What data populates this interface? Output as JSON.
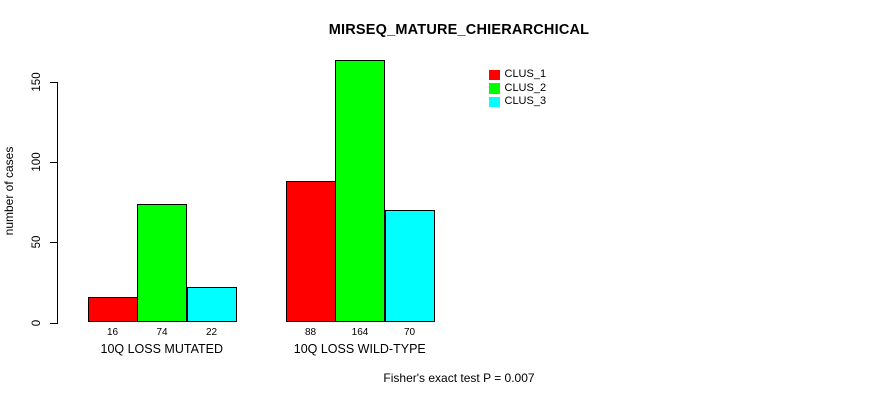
{
  "chart_data": {
    "type": "bar",
    "title": "MIRSEQ_MATURE_CHIERARCHICAL",
    "ylabel": "number of cases",
    "xlabel": "",
    "categories": [
      "10Q LOSS MUTATED",
      "10Q LOSS WILD-TYPE"
    ],
    "series": [
      {
        "name": "CLUS_1",
        "color": "#FF0000",
        "values": [
          16,
          88
        ]
      },
      {
        "name": "CLUS_2",
        "color": "#00FF00",
        "values": [
          74,
          164
        ]
      },
      {
        "name": "CLUS_3",
        "color": "#00FFFF",
        "values": [
          22,
          70
        ]
      }
    ],
    "bar_value_labels": [
      [
        "16",
        "74",
        "22"
      ],
      [
        "88",
        "164",
        "70"
      ]
    ],
    "ylim": [
      0,
      150
    ],
    "yticks": [
      0,
      50,
      100,
      150
    ],
    "grid": false,
    "legend_position": "top-right",
    "legend_entries": [
      "CLUS_1",
      "CLUS_2",
      "CLUS_3"
    ],
    "footnote": "Fisher's exact test P = 0.007"
  }
}
